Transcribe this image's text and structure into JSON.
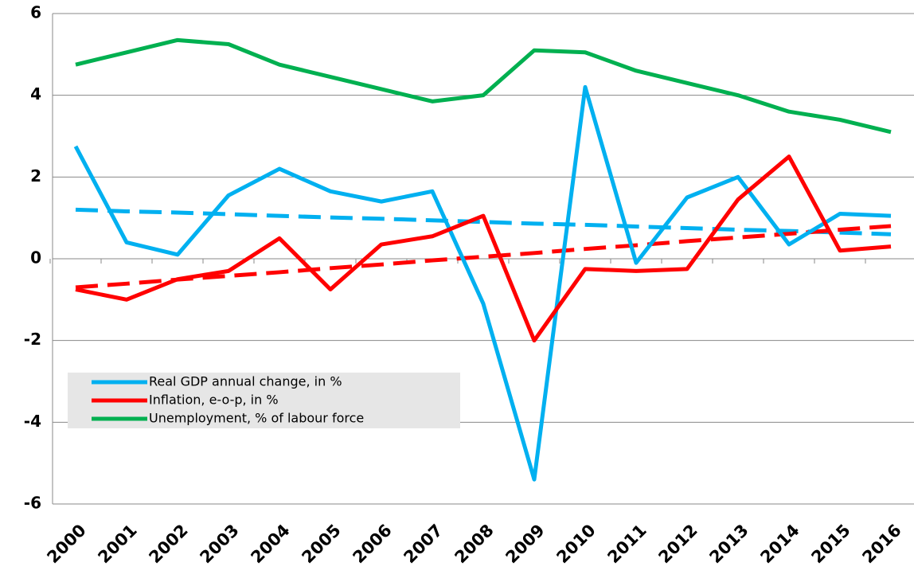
{
  "chart_data": {
    "type": "line",
    "categories": [
      "2000",
      "2001",
      "2002",
      "2003",
      "2004",
      "2005",
      "2006",
      "2007",
      "2008",
      "2009",
      "2010",
      "2011",
      "2012",
      "2013",
      "2014",
      "2015",
      "2016"
    ],
    "series": [
      {
        "name": "Real GDP annual change, in %",
        "color": "#00b0f0",
        "values": [
          2.75,
          0.4,
          0.1,
          1.55,
          2.2,
          1.65,
          1.4,
          1.65,
          -1.1,
          -5.4,
          4.2,
          -0.1,
          1.5,
          2.0,
          0.35,
          1.1,
          1.05
        ]
      },
      {
        "name": "Inflation, e-o-p, in %",
        "color": "#ff0000",
        "values": [
          -0.75,
          -1.0,
          -0.5,
          -0.3,
          0.5,
          -0.75,
          0.35,
          0.55,
          1.05,
          -2.0,
          -0.25,
          -0.3,
          -0.25,
          1.45,
          2.5,
          0.2,
          0.3
        ]
      },
      {
        "name": "Unemployment, % of labour force",
        "color": "#00b050",
        "values": [
          4.75,
          5.05,
          5.35,
          5.25,
          4.75,
          4.45,
          4.15,
          3.85,
          4.0,
          5.1,
          5.05,
          4.6,
          4.3,
          4.0,
          3.6,
          3.4,
          3.1
        ]
      }
    ],
    "trendlines": [
      {
        "color": "#00b0f0",
        "values": [
          1.2,
          1.16,
          1.13,
          1.09,
          1.05,
          1.01,
          0.98,
          0.94,
          0.9,
          0.86,
          0.83,
          0.79,
          0.75,
          0.71,
          0.68,
          0.64,
          0.6
        ]
      },
      {
        "color": "#ff0000",
        "values": [
          -0.7,
          -0.61,
          -0.51,
          -0.42,
          -0.33,
          -0.23,
          -0.14,
          -0.04,
          0.05,
          0.14,
          0.24,
          0.33,
          0.43,
          0.52,
          0.61,
          0.71,
          0.8
        ]
      }
    ],
    "ylim": [
      -6,
      6
    ],
    "yticks": [
      -6,
      -4,
      -2,
      0,
      2,
      4,
      6
    ],
    "grid": true,
    "legend": "lower left"
  }
}
